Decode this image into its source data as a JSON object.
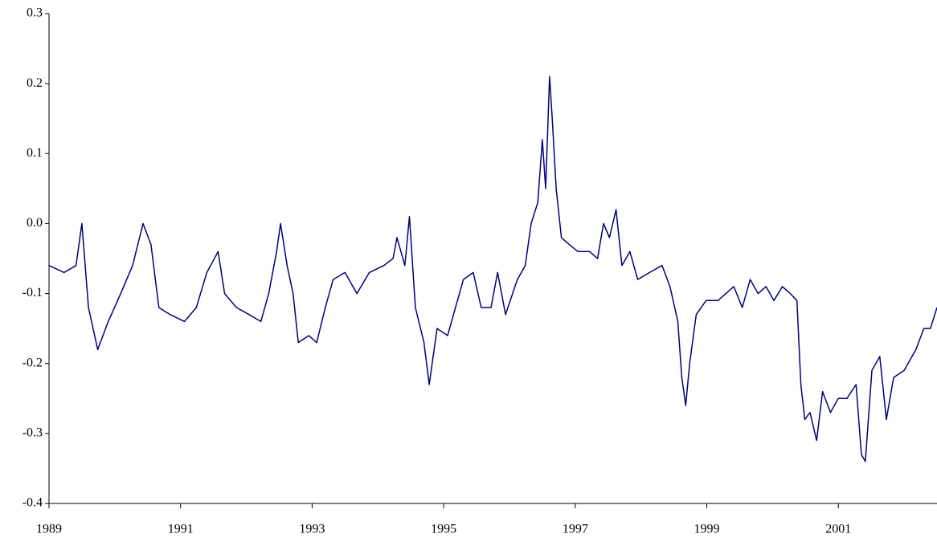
{
  "chart_data": {
    "type": "line",
    "x": [
      1989.0,
      1989.23,
      1989.41,
      1989.5,
      1989.6,
      1989.74,
      1989.9,
      1990.09,
      1990.27,
      1990.43,
      1990.55,
      1990.67,
      1990.84,
      1991.06,
      1991.24,
      1991.4,
      1991.57,
      1991.67,
      1991.85,
      1992.04,
      1992.22,
      1992.34,
      1992.46,
      1992.52,
      1992.62,
      1992.71,
      1992.79,
      1992.95,
      1993.07,
      1993.2,
      1993.32,
      1993.5,
      1993.68,
      1993.87,
      1994.09,
      1994.23,
      1994.29,
      1994.41,
      1994.48,
      1994.57,
      1994.7,
      1994.78,
      1994.9,
      1995.06,
      1995.18,
      1995.3,
      1995.45,
      1995.57,
      1995.72,
      1995.82,
      1995.94,
      1996.12,
      1996.24,
      1996.33,
      1996.43,
      1996.5,
      1996.55,
      1996.61,
      1996.65,
      1996.71,
      1996.79,
      1996.91,
      1997.04,
      1997.22,
      1997.34,
      1997.43,
      1997.52,
      1997.62,
      1997.71,
      1997.83,
      1997.95,
      1998.13,
      1998.32,
      1998.44,
      1998.56,
      1998.62,
      1998.68,
      1998.74,
      1998.84,
      1998.99,
      1999.17,
      1999.29,
      1999.41,
      1999.54,
      1999.66,
      1999.78,
      1999.9,
      2000.02,
      2000.15,
      2000.27,
      2000.37,
      2000.43,
      2000.49,
      2000.57,
      2000.67,
      2000.76,
      2000.88,
      2001.0,
      2001.13,
      2001.27,
      2001.35,
      2001.41,
      2001.51,
      2001.63,
      2001.73,
      2001.84,
      2002.0,
      2002.18,
      2002.3,
      2002.4,
      2002.5
    ],
    "series": [
      {
        "color": "#000080",
        "values": [
          -0.06,
          -0.07,
          -0.06,
          0.0,
          -0.12,
          -0.18,
          -0.14,
          -0.1,
          -0.06,
          0.0,
          -0.03,
          -0.12,
          -0.13,
          -0.14,
          -0.12,
          -0.07,
          -0.04,
          -0.1,
          -0.12,
          -0.13,
          -0.14,
          -0.1,
          -0.04,
          0.0,
          -0.06,
          -0.1,
          -0.17,
          -0.16,
          -0.17,
          -0.12,
          -0.08,
          -0.07,
          -0.1,
          -0.07,
          -0.06,
          -0.05,
          -0.02,
          -0.06,
          0.01,
          -0.12,
          -0.17,
          -0.23,
          -0.15,
          -0.16,
          -0.12,
          -0.08,
          -0.07,
          -0.12,
          -0.12,
          -0.07,
          -0.13,
          -0.08,
          -0.06,
          0.0,
          0.03,
          0.12,
          0.05,
          0.21,
          0.15,
          0.05,
          -0.02,
          -0.03,
          -0.04,
          -0.04,
          -0.05,
          0.0,
          -0.02,
          0.02,
          -0.06,
          -0.04,
          -0.08,
          -0.07,
          -0.06,
          -0.09,
          -0.14,
          -0.22,
          -0.26,
          -0.2,
          -0.13,
          -0.11,
          -0.11,
          -0.1,
          -0.09,
          -0.12,
          -0.08,
          -0.1,
          -0.09,
          -0.11,
          -0.09,
          -0.1,
          -0.11,
          -0.23,
          -0.28,
          -0.27,
          -0.31,
          -0.24,
          -0.27,
          -0.25,
          -0.25,
          -0.23,
          -0.33,
          -0.34,
          -0.21,
          -0.19,
          -0.28,
          -0.22,
          -0.21,
          -0.18,
          -0.15,
          -0.15,
          -0.12
        ]
      }
    ],
    "xlim": [
      1989,
      2002.5
    ],
    "xticks": [
      1989,
      1991,
      1993,
      1995,
      1997,
      1999,
      2001
    ],
    "ylim": [
      -0.4,
      0.3
    ],
    "yticks": [
      -0.4,
      -0.3,
      -0.2,
      -0.1,
      {
        "value": 0,
        "label": "0.0"
      },
      0.1,
      0.2,
      0.3
    ]
  }
}
